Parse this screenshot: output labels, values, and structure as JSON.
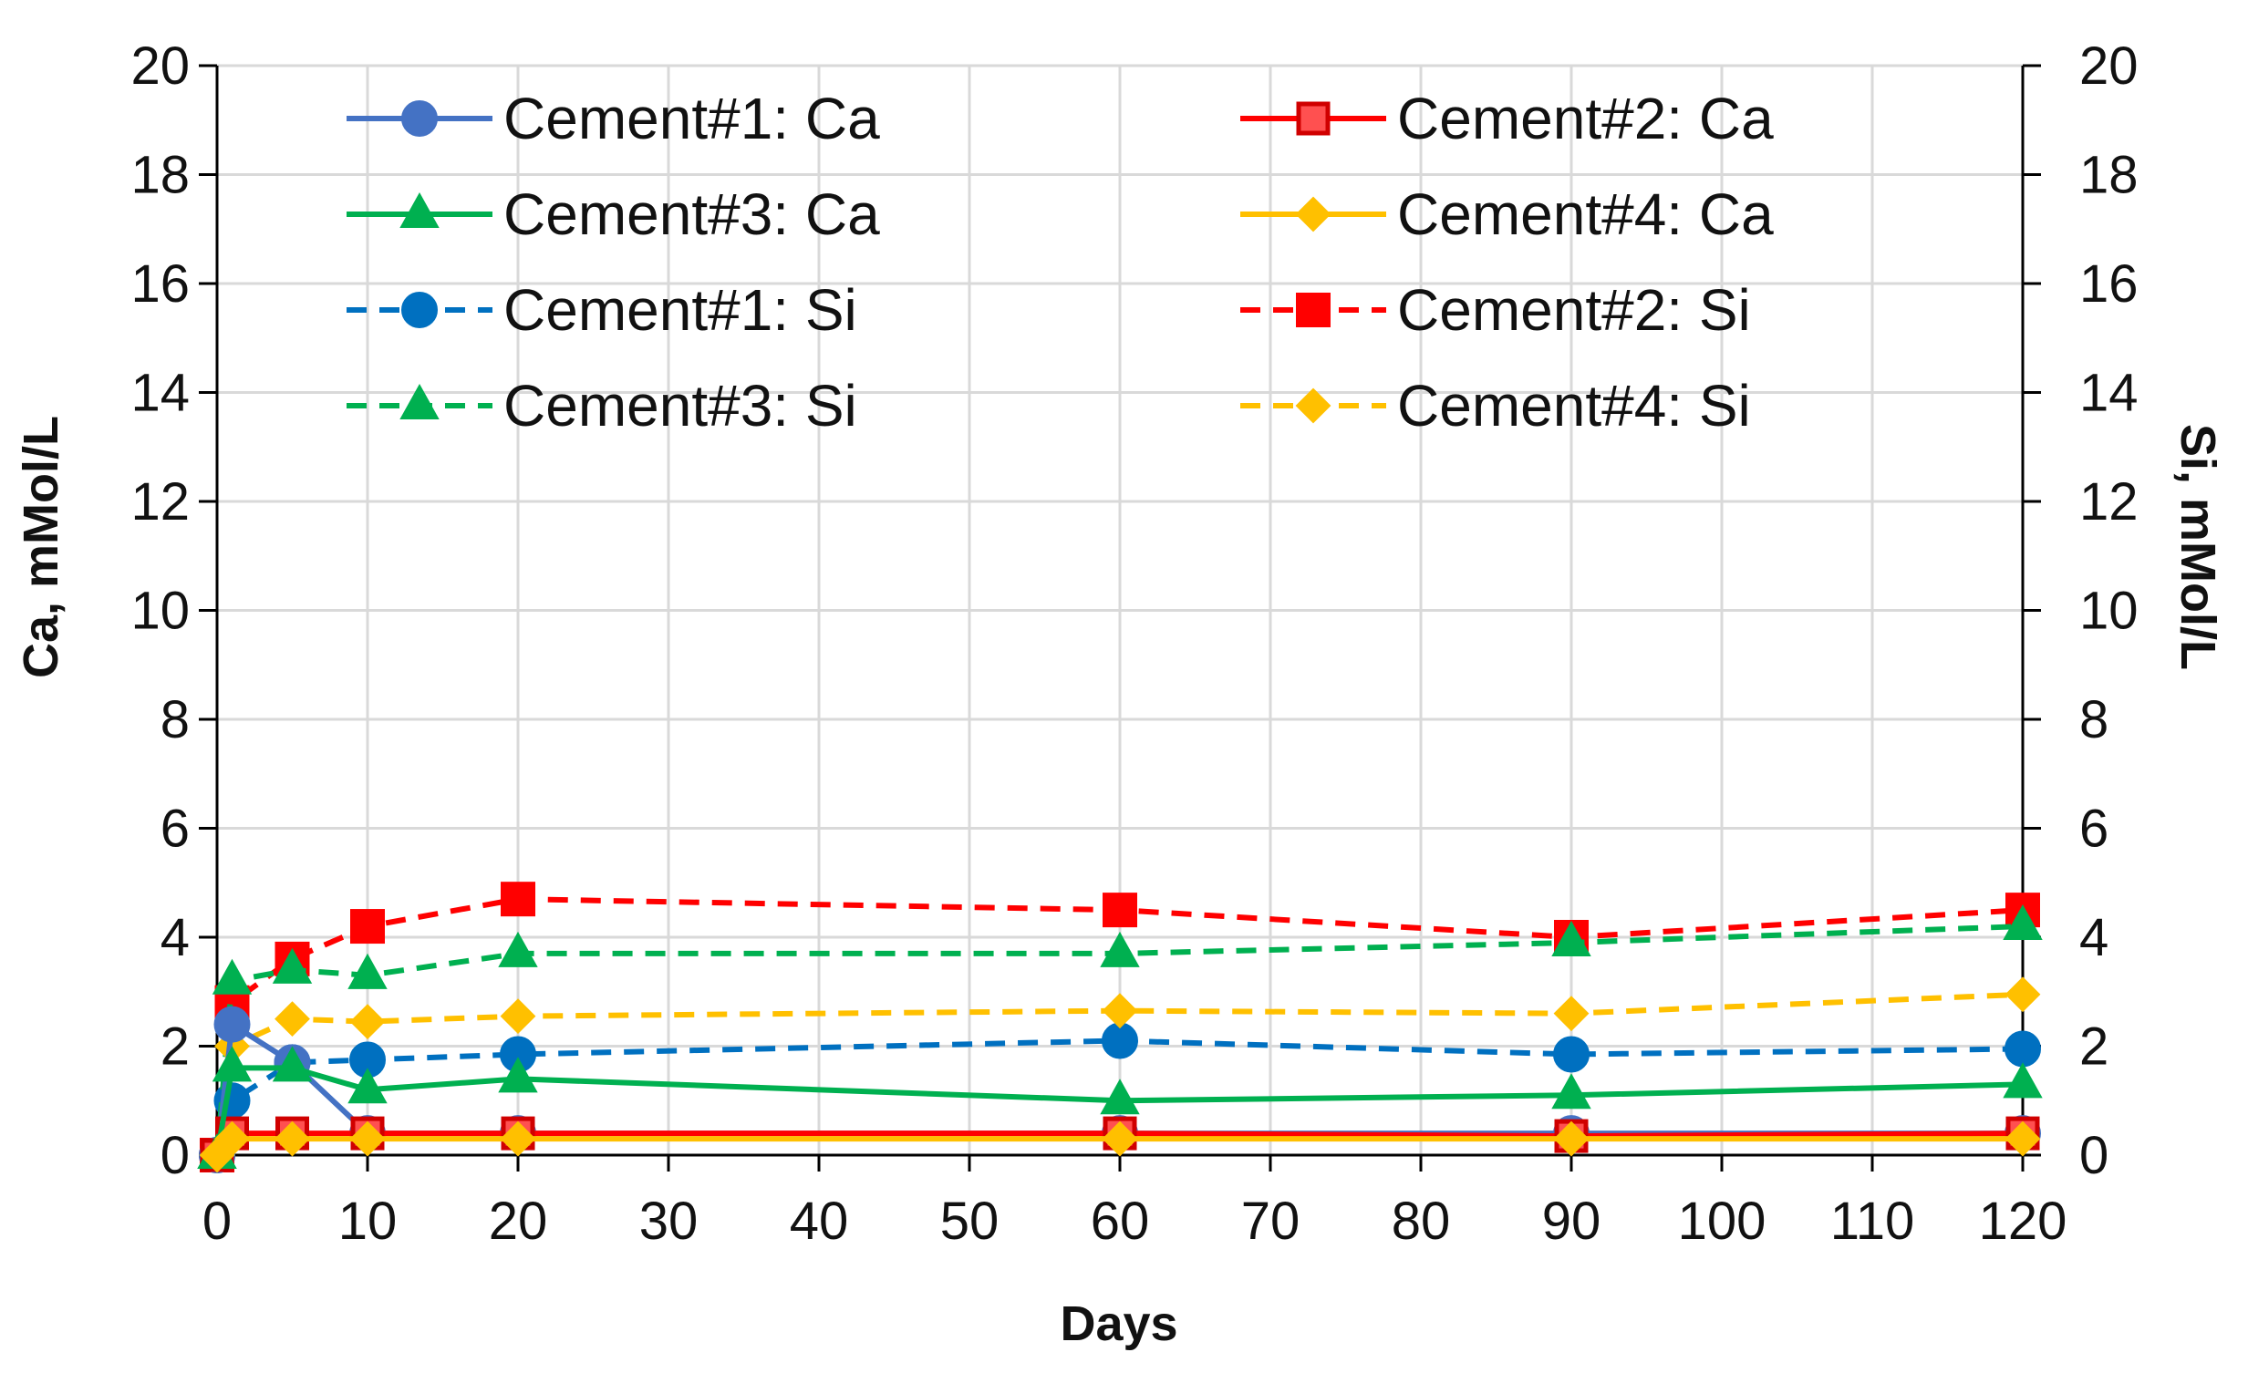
{
  "chart_data": {
    "type": "line",
    "title": "",
    "xlabel": "Days",
    "ylabel": "Ca, mMol/L",
    "y2label": "Si, mMol/L",
    "xlim": [
      0,
      120
    ],
    "ylim": [
      0,
      20
    ],
    "y2lim": [
      0,
      20
    ],
    "xticks": [
      0,
      10,
      20,
      30,
      40,
      50,
      60,
      70,
      80,
      90,
      100,
      110,
      120
    ],
    "yticks": [
      0,
      2,
      4,
      6,
      8,
      10,
      12,
      14,
      16,
      18,
      20
    ],
    "y2ticks": [
      0,
      2,
      4,
      6,
      8,
      10,
      12,
      14,
      16,
      18,
      20
    ],
    "grid": true,
    "legend_position": "top",
    "series": [
      {
        "name": "Cement#1: Ca",
        "axis": "left",
        "color": "#4472C4",
        "line": "solid",
        "marker": "circle",
        "x": [
          0,
          1,
          5,
          10,
          20,
          60,
          90,
          120
        ],
        "y": [
          0,
          2.4,
          1.7,
          0.4,
          0.4,
          0.4,
          0.4,
          0.4
        ]
      },
      {
        "name": "Cement#2: Ca",
        "axis": "left",
        "color": "#FF0000",
        "line": "solid",
        "marker": "square-hollow",
        "x": [
          0,
          1,
          5,
          10,
          20,
          60,
          90,
          120
        ],
        "y": [
          0,
          0.4,
          0.4,
          0.4,
          0.4,
          0.4,
          0.35,
          0.4
        ]
      },
      {
        "name": "Cement#3: Ca",
        "axis": "left",
        "color": "#00B050",
        "line": "solid",
        "marker": "triangle",
        "x": [
          0,
          1,
          5,
          10,
          20,
          60,
          90,
          120
        ],
        "y": [
          0,
          1.6,
          1.6,
          1.2,
          1.4,
          1.0,
          1.1,
          1.3
        ]
      },
      {
        "name": "Cement#4: Ca",
        "axis": "left",
        "color": "#FFC000",
        "line": "solid",
        "marker": "diamond",
        "x": [
          0,
          1,
          5,
          10,
          20,
          60,
          90,
          120
        ],
        "y": [
          0,
          0.3,
          0.3,
          0.3,
          0.3,
          0.3,
          0.3,
          0.3
        ]
      },
      {
        "name": "Cement#1: Si",
        "axis": "right",
        "color": "#0070C0",
        "line": "dashed",
        "marker": "circle",
        "x": [
          0,
          1,
          5,
          10,
          20,
          60,
          90,
          120
        ],
        "y": [
          0,
          1.0,
          1.7,
          1.75,
          1.85,
          2.1,
          1.85,
          1.95
        ]
      },
      {
        "name": "Cement#2: Si",
        "axis": "right",
        "color": "#FF0000",
        "line": "dashed",
        "marker": "square",
        "x": [
          0,
          1,
          5,
          10,
          20,
          60,
          90,
          120
        ],
        "y": [
          0,
          2.8,
          3.6,
          4.2,
          4.7,
          4.5,
          4.0,
          4.5
        ]
      },
      {
        "name": "Cement#3: Si",
        "axis": "right",
        "color": "#00B050",
        "line": "dashed",
        "marker": "triangle",
        "x": [
          0,
          1,
          5,
          10,
          20,
          60,
          90,
          120
        ],
        "y": [
          0,
          3.2,
          3.4,
          3.3,
          3.7,
          3.7,
          3.9,
          4.2
        ]
      },
      {
        "name": "Cement#4: Si",
        "axis": "right",
        "color": "#FFC000",
        "line": "dashed",
        "marker": "diamond",
        "x": [
          0,
          1,
          5,
          10,
          20,
          60,
          90,
          120
        ],
        "y": [
          0,
          2.0,
          2.5,
          2.45,
          2.55,
          2.65,
          2.6,
          2.95
        ]
      }
    ]
  }
}
